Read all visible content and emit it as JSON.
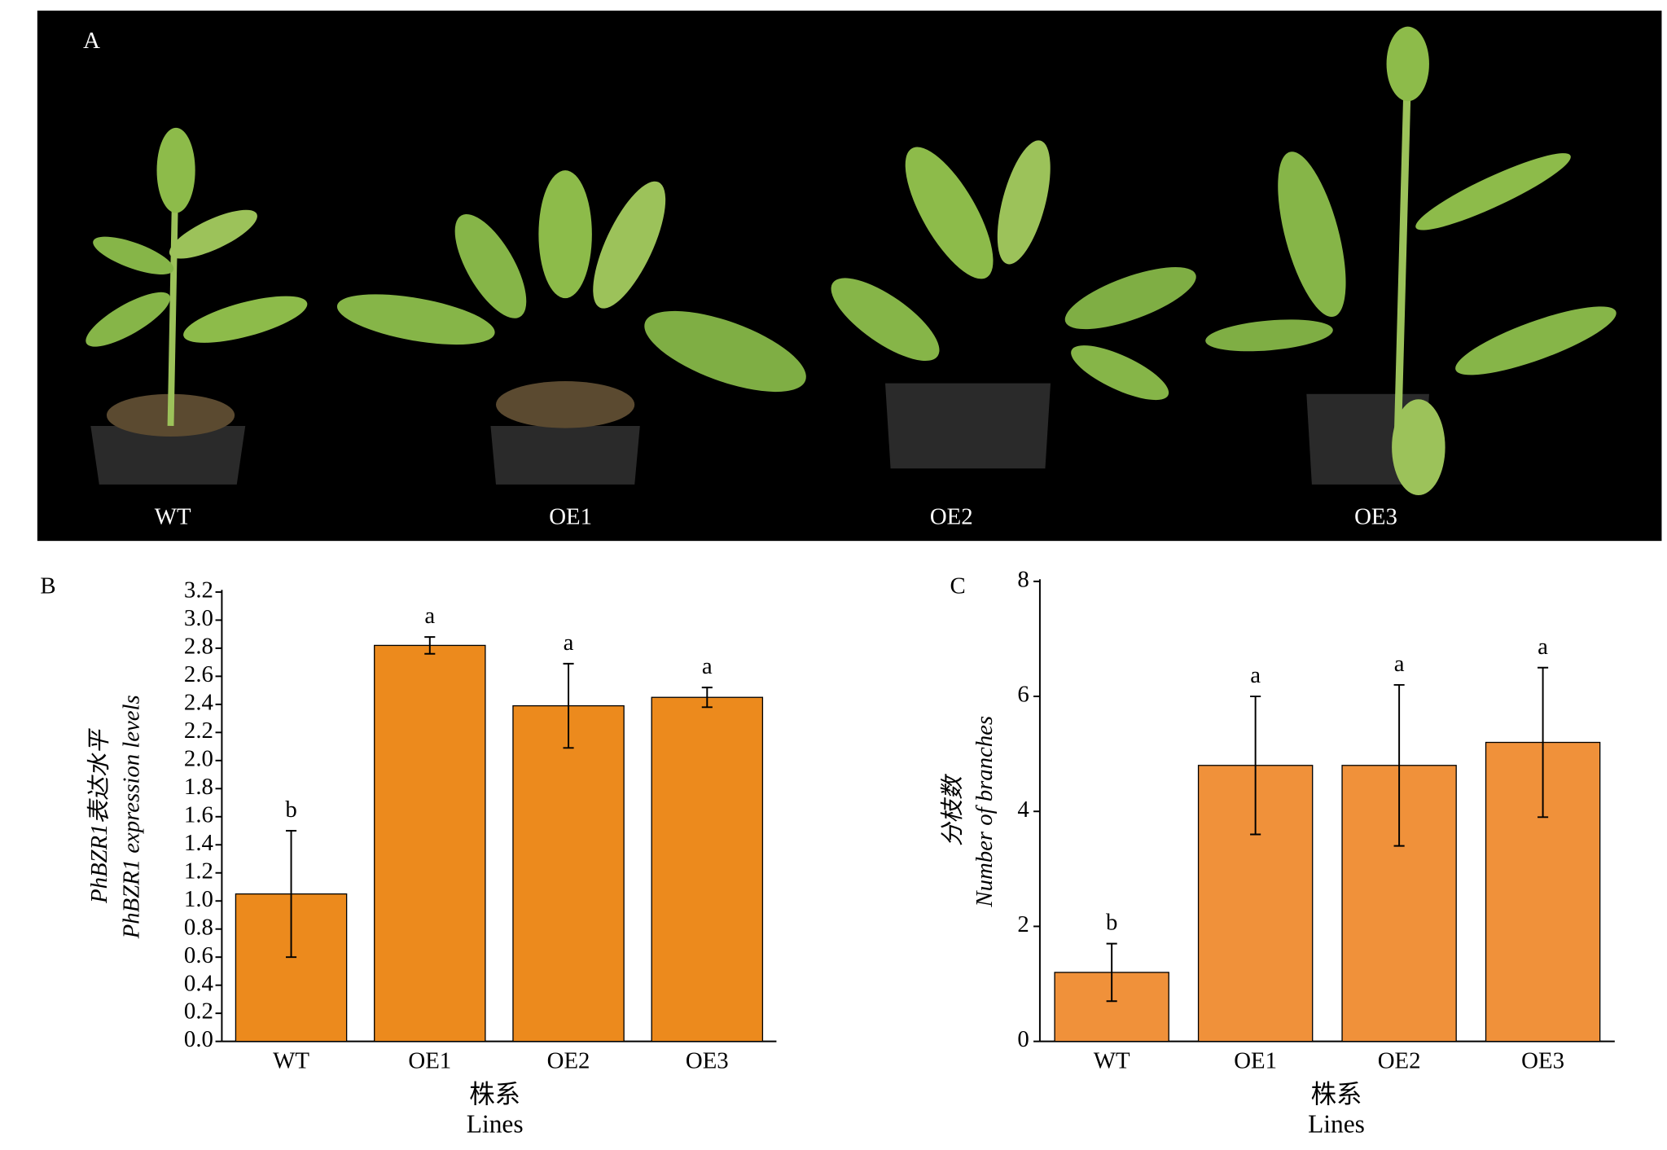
{
  "photo": {
    "label": "A",
    "captions": [
      "WT",
      "OE1",
      "OE2",
      "OE3"
    ]
  },
  "chart_data": [
    {
      "type": "bar",
      "panel": "B",
      "ylabel": [
        "PhBZR1表达水平",
        "PhBZR1 expression levels"
      ],
      "xlabel": [
        "株系",
        "Lines"
      ],
      "categories": [
        "WT",
        "OE1",
        "OE2",
        "OE3"
      ],
      "values": [
        1.05,
        2.82,
        2.39,
        2.45
      ],
      "errors": [
        0.45,
        0.06,
        0.3,
        0.07
      ],
      "sig_labels": [
        "b",
        "a",
        "a",
        "a"
      ],
      "color": "#ec8a1d",
      "ylim": [
        0,
        3.2
      ],
      "yticks": [
        {
          "value": 0,
          "label": "0.0"
        },
        0.2,
        0.4,
        0.6,
        0.8,
        {
          "value": 1,
          "label": "1.0"
        },
        1.2,
        1.4,
        1.6,
        1.8,
        {
          "value": 2,
          "label": "2.0"
        },
        2.2,
        2.4,
        2.6,
        2.8,
        {
          "value": 3,
          "label": "3.0"
        },
        3.2
      ]
    },
    {
      "type": "bar",
      "panel": "C",
      "ylabel": [
        "分枝数",
        "Number of branches"
      ],
      "xlabel": [
        "株系",
        "Lines"
      ],
      "categories": [
        "WT",
        "OE1",
        "OE2",
        "OE3"
      ],
      "values": [
        1.2,
        4.8,
        4.8,
        5.2
      ],
      "errors": [
        0.5,
        1.2,
        1.4,
        1.3
      ],
      "sig_labels": [
        "b",
        "a",
        "a",
        "a"
      ],
      "color": "#f0913a",
      "ylim": [
        0,
        8
      ],
      "yticks": [
        0,
        2,
        4,
        6,
        8
      ]
    }
  ]
}
